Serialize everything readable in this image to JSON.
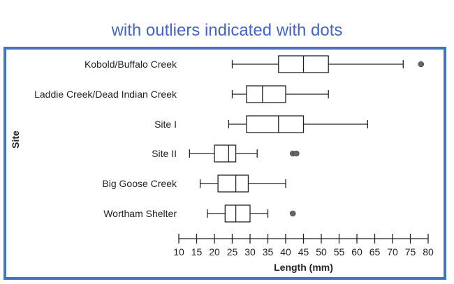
{
  "heading": "with outliers indicated with dots",
  "chart_data": {
    "type": "boxplot",
    "orientation": "horizontal",
    "xlabel": "Length (mm)",
    "ylabel": "Site",
    "xlim": [
      10,
      80
    ],
    "x_ticks": [
      10,
      15,
      20,
      25,
      30,
      35,
      40,
      45,
      50,
      55,
      60,
      65,
      70,
      75,
      80
    ],
    "categories": [
      "Kobold/Buffalo Creek",
      "Laddie Creek/Dead Indian Creek",
      "Site I",
      "Site II",
      "Big Goose Creek",
      "Wortham Shelter"
    ],
    "boxes": [
      {
        "min": 25,
        "q1": 38,
        "median": 45,
        "q3": 52,
        "max": 73,
        "outliers": [
          78
        ]
      },
      {
        "min": 25,
        "q1": 29,
        "median": 33.5,
        "q3": 40,
        "max": 52,
        "outliers": []
      },
      {
        "min": 24,
        "q1": 29,
        "median": 38,
        "q3": 45,
        "max": 63,
        "outliers": []
      },
      {
        "min": 13,
        "q1": 20,
        "median": 24,
        "q3": 26,
        "max": 32,
        "outliers": [
          42,
          43
        ]
      },
      {
        "min": 16,
        "q1": 21,
        "median": 26,
        "q3": 29.5,
        "max": 40,
        "outliers": []
      },
      {
        "min": 18,
        "q1": 23,
        "median": 26,
        "q3": 30,
        "max": 35,
        "outliers": [
          42
        ]
      }
    ],
    "colors": {
      "stroke": "#222222",
      "outlier": "#666666",
      "frame": "#4472c4",
      "heading": "#3f66c6"
    }
  }
}
